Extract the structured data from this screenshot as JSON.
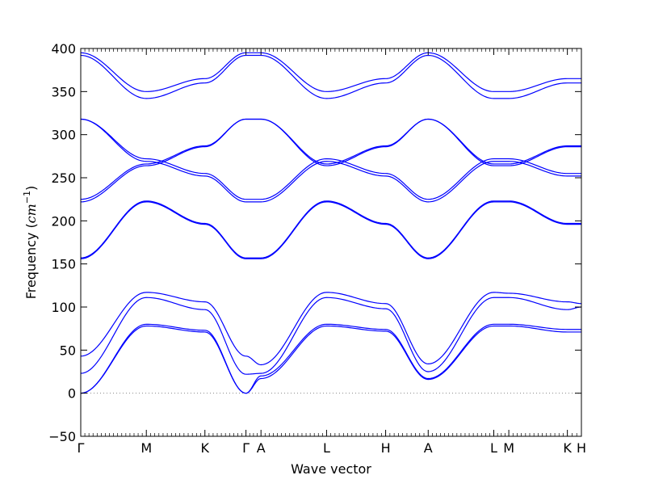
{
  "chart_data": {
    "type": "line",
    "xlabel": "Wave vector",
    "ylabel_prefix": "Frequency (",
    "ylabel_unit_base": "cm",
    "ylabel_unit_exp": "−1",
    "ylabel_suffix": ")",
    "ylim": [
      -50,
      400
    ],
    "yticks": [
      -50,
      0,
      50,
      100,
      150,
      200,
      250,
      300,
      350,
      400
    ],
    "xlim": [
      0,
      1
    ],
    "grid": false,
    "legend": "none",
    "line_color": "#0000ff",
    "zero_line_color": "#888888",
    "high_symmetry_points": [
      {
        "label": "Γ",
        "x": 0.0
      },
      {
        "label": "M",
        "x": 0.131
      },
      {
        "label": "K",
        "x": 0.248
      },
      {
        "label": "Γ",
        "x": 0.33
      },
      {
        "label": "A",
        "x": 0.36
      },
      {
        "label": "L",
        "x": 0.491
      },
      {
        "label": "H",
        "x": 0.609
      },
      {
        "label": "A",
        "x": 0.694
      },
      {
        "label": "L",
        "x": 0.825
      },
      {
        "label": "M",
        "x": 0.855
      },
      {
        "label": "K",
        "x": 0.972
      },
      {
        "label": "H",
        "x": 1.0
      }
    ],
    "series": [
      {
        "values": [
          [
            0.0,
            0
          ],
          [
            0.131,
            78
          ],
          [
            0.248,
            71
          ],
          [
            0.33,
            0
          ],
          [
            0.36,
            17
          ],
          [
            0.491,
            78
          ],
          [
            0.609,
            72
          ],
          [
            0.694,
            16
          ],
          [
            0.825,
            78
          ],
          [
            0.855,
            78
          ],
          [
            0.972,
            71
          ],
          [
            1.0,
            71
          ]
        ]
      },
      {
        "values": [
          [
            0.0,
            0
          ],
          [
            0.131,
            80
          ],
          [
            0.248,
            73
          ],
          [
            0.33,
            0
          ],
          [
            0.36,
            20
          ],
          [
            0.491,
            80
          ],
          [
            0.609,
            74
          ],
          [
            0.694,
            17
          ],
          [
            0.825,
            80
          ],
          [
            0.855,
            80
          ],
          [
            0.972,
            74
          ],
          [
            1.0,
            74
          ]
        ]
      },
      {
        "values": [
          [
            0.0,
            23
          ],
          [
            0.131,
            111
          ],
          [
            0.248,
            97
          ],
          [
            0.33,
            22
          ],
          [
            0.36,
            23
          ],
          [
            0.491,
            111
          ],
          [
            0.609,
            98
          ],
          [
            0.694,
            25
          ],
          [
            0.825,
            111
          ],
          [
            0.855,
            111
          ],
          [
            0.972,
            97
          ],
          [
            1.0,
            100
          ]
        ]
      },
      {
        "values": [
          [
            0.0,
            43
          ],
          [
            0.131,
            117
          ],
          [
            0.248,
            106
          ],
          [
            0.33,
            43
          ],
          [
            0.36,
            33
          ],
          [
            0.491,
            117
          ],
          [
            0.609,
            104
          ],
          [
            0.694,
            34
          ],
          [
            0.825,
            117
          ],
          [
            0.855,
            116
          ],
          [
            0.972,
            106
          ],
          [
            1.0,
            104
          ]
        ]
      },
      {
        "values": [
          [
            0.0,
            156
          ],
          [
            0.131,
            222
          ],
          [
            0.248,
            196
          ],
          [
            0.33,
            156
          ],
          [
            0.36,
            156
          ],
          [
            0.491,
            222
          ],
          [
            0.609,
            196
          ],
          [
            0.694,
            156
          ],
          [
            0.825,
            222
          ],
          [
            0.855,
            222
          ],
          [
            0.972,
            196
          ],
          [
            1.0,
            196
          ]
        ]
      },
      {
        "values": [
          [
            0.0,
            157
          ],
          [
            0.131,
            223
          ],
          [
            0.248,
            197
          ],
          [
            0.33,
            157
          ],
          [
            0.36,
            157
          ],
          [
            0.491,
            223
          ],
          [
            0.609,
            197
          ],
          [
            0.694,
            157
          ],
          [
            0.825,
            223
          ],
          [
            0.855,
            223
          ],
          [
            0.972,
            197
          ],
          [
            1.0,
            197
          ]
        ]
      },
      {
        "values": [
          [
            0.0,
            222
          ],
          [
            0.131,
            264
          ],
          [
            0.248,
            286
          ],
          [
            0.33,
            318
          ],
          [
            0.36,
            318
          ],
          [
            0.491,
            264
          ],
          [
            0.609,
            286
          ],
          [
            0.694,
            318
          ],
          [
            0.825,
            264
          ],
          [
            0.855,
            264
          ],
          [
            0.972,
            286
          ],
          [
            1.0,
            286
          ]
        ]
      },
      {
        "values": [
          [
            0.0,
            225
          ],
          [
            0.131,
            266
          ],
          [
            0.248,
            287
          ],
          [
            0.33,
            318
          ],
          [
            0.36,
            318
          ],
          [
            0.491,
            266
          ],
          [
            0.609,
            287
          ],
          [
            0.694,
            318
          ],
          [
            0.825,
            266
          ],
          [
            0.855,
            266
          ],
          [
            0.972,
            287
          ],
          [
            1.0,
            287
          ]
        ]
      },
      {
        "values": [
          [
            0.0,
            318
          ],
          [
            0.131,
            269
          ],
          [
            0.248,
            252
          ],
          [
            0.33,
            222
          ],
          [
            0.36,
            222
          ],
          [
            0.491,
            269
          ],
          [
            0.609,
            252
          ],
          [
            0.694,
            222
          ],
          [
            0.825,
            269
          ],
          [
            0.855,
            269
          ],
          [
            0.972,
            252
          ],
          [
            1.0,
            252
          ]
        ]
      },
      {
        "values": [
          [
            0.0,
            318
          ],
          [
            0.131,
            272
          ],
          [
            0.248,
            255
          ],
          [
            0.33,
            225
          ],
          [
            0.36,
            225
          ],
          [
            0.491,
            272
          ],
          [
            0.609,
            255
          ],
          [
            0.694,
            225
          ],
          [
            0.825,
            272
          ],
          [
            0.855,
            272
          ],
          [
            0.972,
            255
          ],
          [
            1.0,
            255
          ]
        ]
      },
      {
        "values": [
          [
            0.0,
            392
          ],
          [
            0.131,
            342
          ],
          [
            0.248,
            360
          ],
          [
            0.33,
            392
          ],
          [
            0.36,
            392
          ],
          [
            0.491,
            342
          ],
          [
            0.609,
            360
          ],
          [
            0.694,
            392
          ],
          [
            0.825,
            342
          ],
          [
            0.855,
            342
          ],
          [
            0.972,
            360
          ],
          [
            1.0,
            360
          ]
        ]
      },
      {
        "values": [
          [
            0.0,
            395
          ],
          [
            0.131,
            350
          ],
          [
            0.248,
            365
          ],
          [
            0.33,
            395
          ],
          [
            0.36,
            395
          ],
          [
            0.491,
            350
          ],
          [
            0.609,
            365
          ],
          [
            0.694,
            395
          ],
          [
            0.825,
            350
          ],
          [
            0.855,
            350
          ],
          [
            0.972,
            365
          ],
          [
            1.0,
            365
          ]
        ]
      }
    ]
  }
}
